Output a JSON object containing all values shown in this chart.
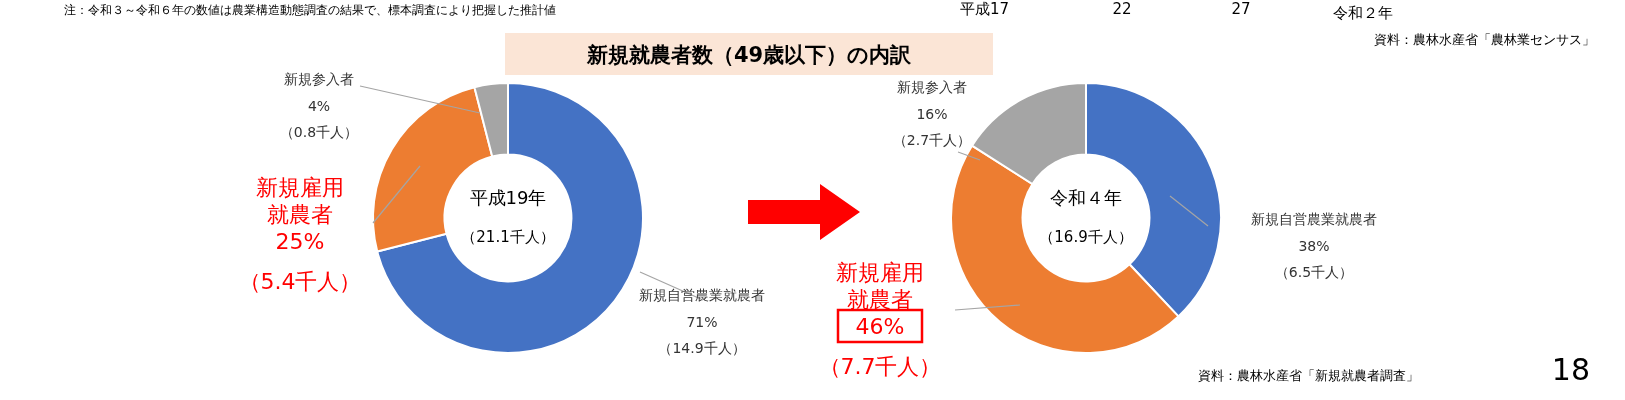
{
  "chart_data": [
    {
      "type": "donut",
      "title": "新規就農者数（49歳以下）の内訳",
      "categories": [
        "新規自営農業就農者",
        "新規雇用就農者",
        "新規参入者"
      ],
      "values": [
        71,
        25,
        4
      ],
      "colors": [
        "#4472c4",
        "#ed7d31",
        "#a5a5a5"
      ],
      "value_labels": [
        "71%",
        "25%",
        "4%"
      ],
      "annotations": [
        "平成19年",
        "（21.1千人）",
        "（14.9千人）",
        "（5.4千人）",
        "（0.8千人）",
        "注：令和３～令和６年の数値は農業構造動態調査の結果で、標本調査により把握した推計値",
        "平成17",
        "22",
        "27",
        "令和２年",
        "資料：農林水産省「農林業センサス」",
        "18"
      ]
    },
    {
      "type": "donut",
      "categories": [
        "新規自営農業就農者",
        "新規雇用就農者",
        "新規参入者"
      ],
      "values": [
        38,
        46,
        16
      ],
      "colors": [
        "#4472c4",
        "#ed7d31",
        "#a5a5a5"
      ],
      "value_labels": [
        "38%",
        "46%",
        "16%"
      ],
      "annotations": [
        "令和４年",
        "（16.9千人）",
        "（6.5千人）",
        "（7.7千人）",
        "（2.7千人）",
        "資料：農林水産省「新規就農者調査」"
      ]
    }
  ]
}
